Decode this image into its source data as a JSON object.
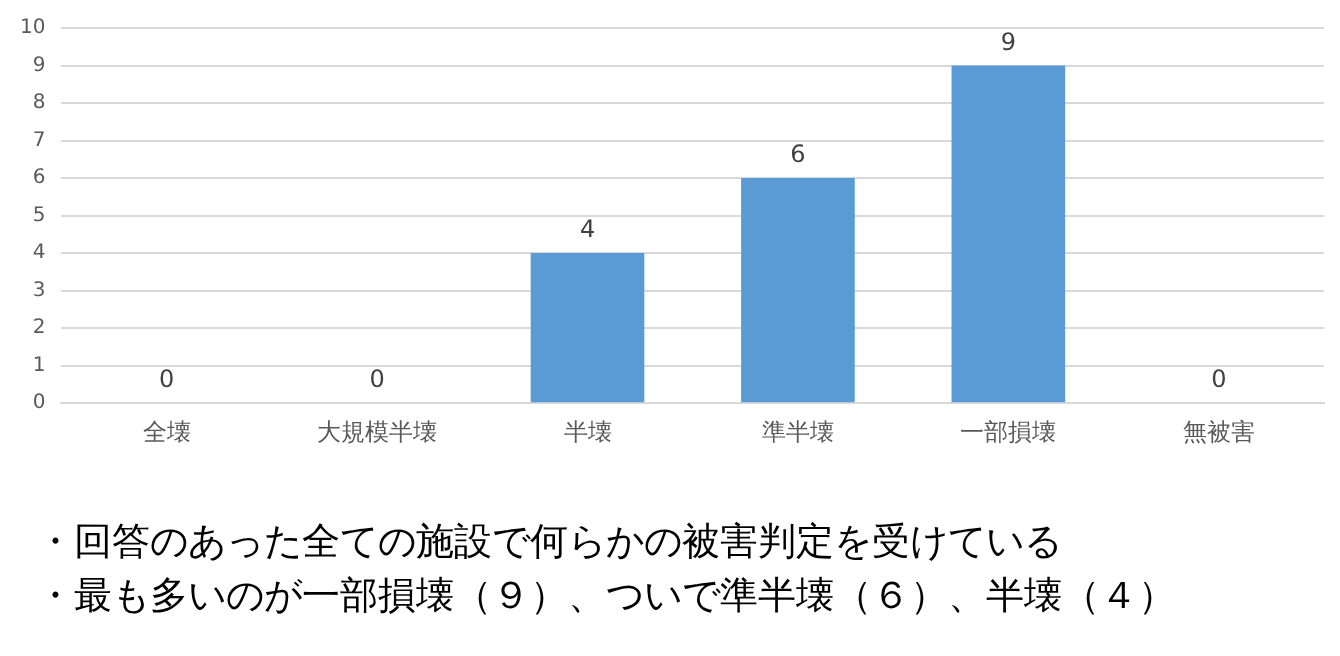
{
  "chart_data": {
    "type": "bar",
    "categories": [
      "全壊",
      "大規模半壊",
      "半壊",
      "準半壊",
      "一部損壊",
      "無被害"
    ],
    "values": [
      0,
      0,
      4,
      6,
      9,
      0
    ],
    "color": "#5b9bd5",
    "ylim": [
      0,
      10
    ],
    "yticks": [
      0,
      1,
      2,
      3,
      4,
      5,
      6,
      7,
      8,
      9,
      10
    ],
    "grid": "y",
    "data_labels": true,
    "legend": false,
    "annotations": [
      "・回答のあった全ての施設で何らかの被害判定を受けている",
      "・最も多いのが一部損壊（９）、ついで準半壊（６）、半壊（４）"
    ]
  }
}
